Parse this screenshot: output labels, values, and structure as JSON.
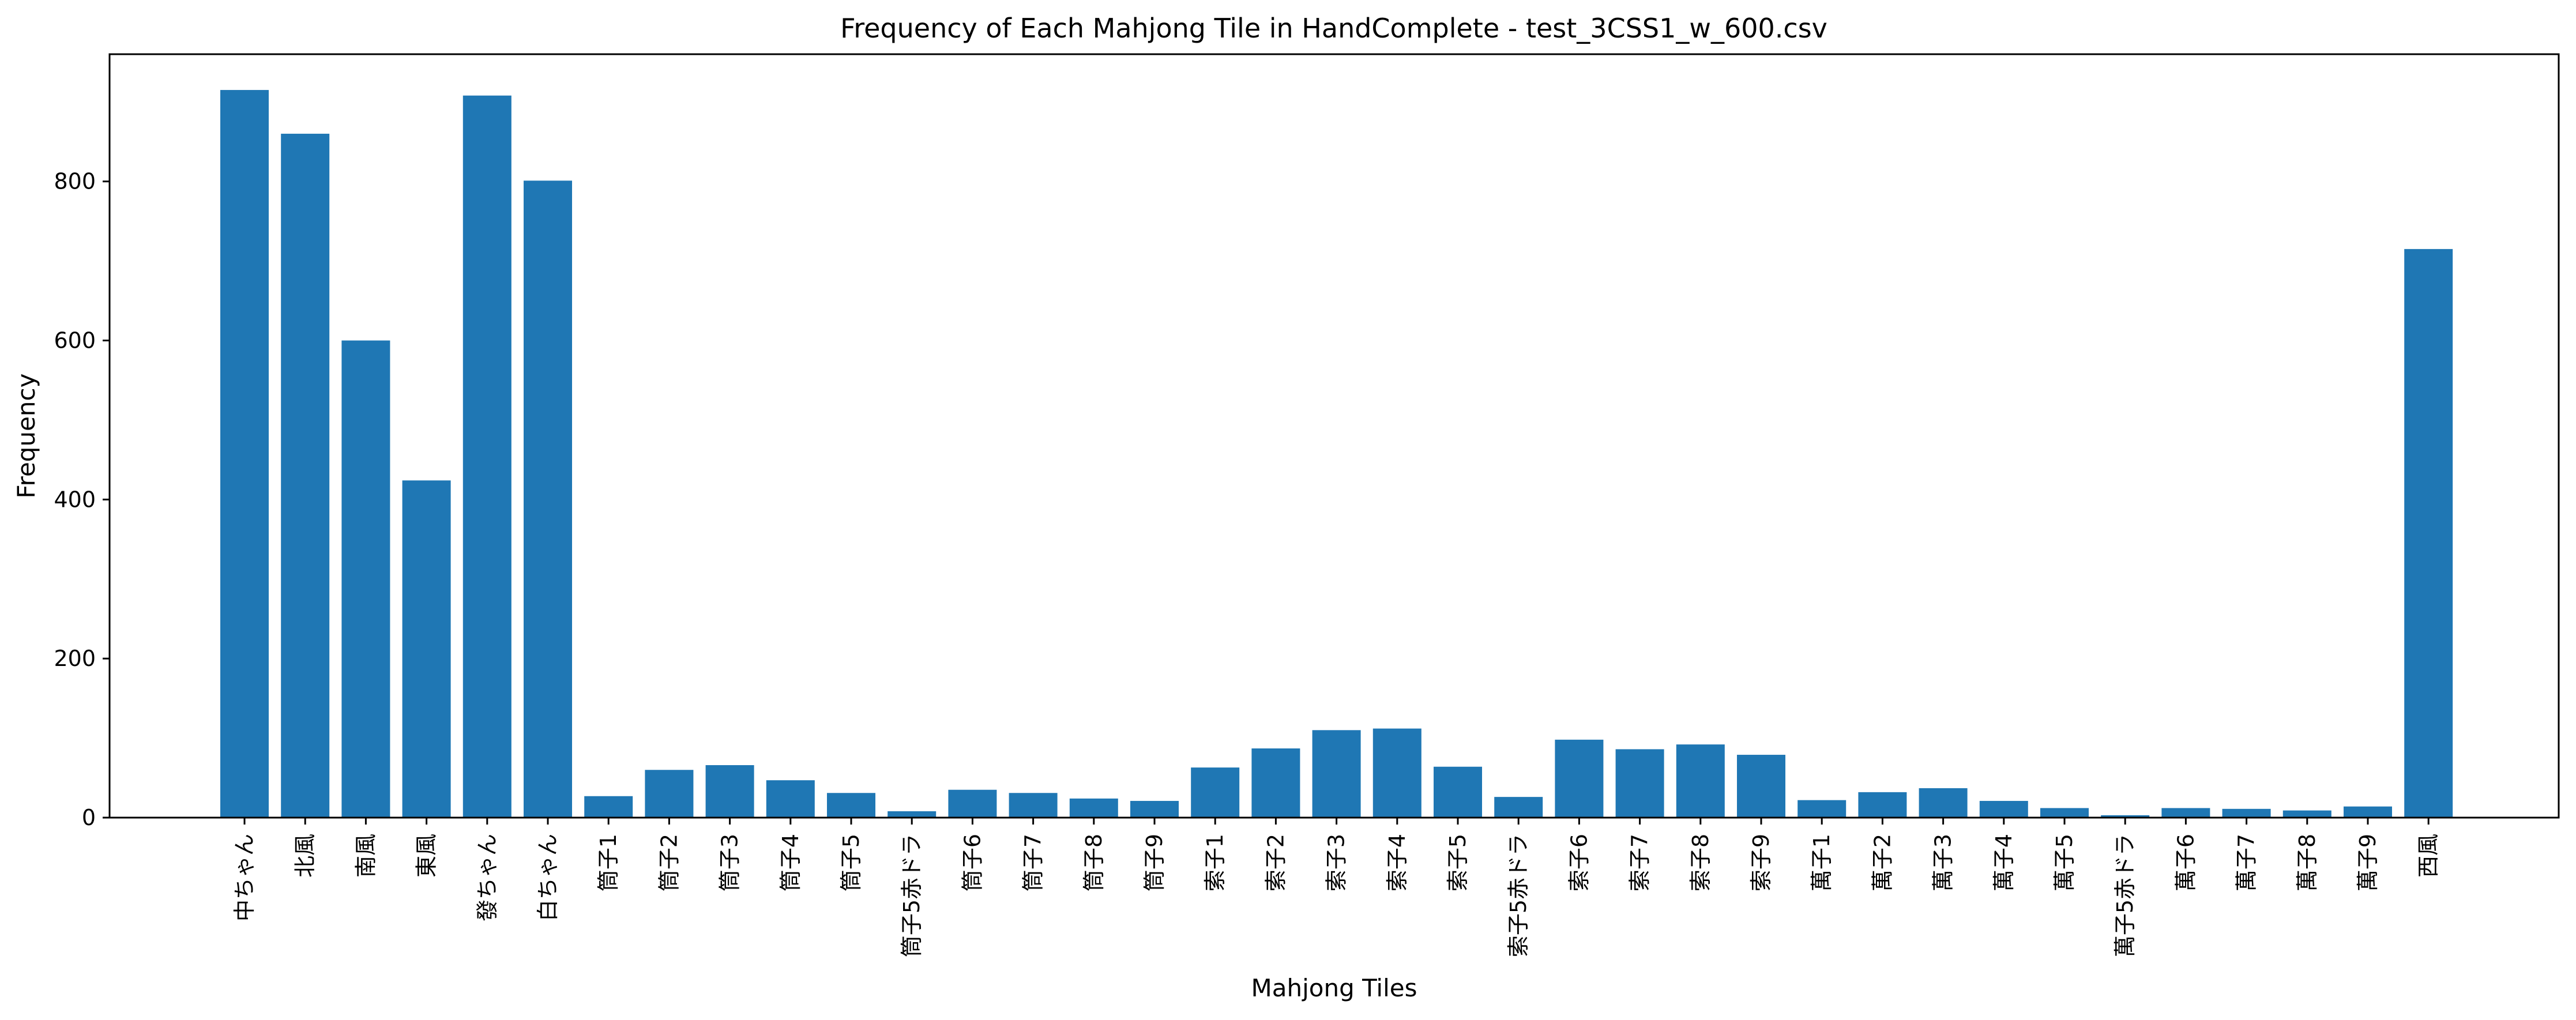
{
  "chart_data": {
    "type": "bar",
    "title": "Frequency of Each Mahjong Tile in HandComplete - test_3CSS1_w_600.csv",
    "xlabel": "Mahjong Tiles",
    "ylabel": "Frequency",
    "ylim": [
      0,
      960
    ],
    "yticks": [
      0,
      200,
      400,
      600,
      800
    ],
    "grid": false,
    "bar_color": "#1f77b4",
    "categories": [
      "中ちゃん",
      "北風",
      "南風",
      "東風",
      "發ちゃん",
      "白ちゃん",
      "筒子1",
      "筒子2",
      "筒子3",
      "筒子4",
      "筒子5",
      "筒子5赤ドラ",
      "筒子6",
      "筒子7",
      "筒子8",
      "筒子9",
      "索子1",
      "索子2",
      "索子3",
      "索子4",
      "索子5",
      "索子5赤ドラ",
      "索子6",
      "索子7",
      "索子8",
      "索子9",
      "萬子1",
      "萬子2",
      "萬子3",
      "萬子4",
      "萬子5",
      "萬子5赤ドラ",
      "萬子6",
      "萬子7",
      "萬子8",
      "萬子9",
      "西風"
    ],
    "values": [
      915,
      860,
      600,
      424,
      908,
      801,
      27,
      60,
      66,
      47,
      31,
      8,
      35,
      31,
      24,
      21,
      63,
      87,
      110,
      112,
      64,
      26,
      98,
      86,
      92,
      79,
      22,
      32,
      37,
      21,
      12,
      3,
      12,
      11,
      9,
      14,
      715
    ]
  }
}
